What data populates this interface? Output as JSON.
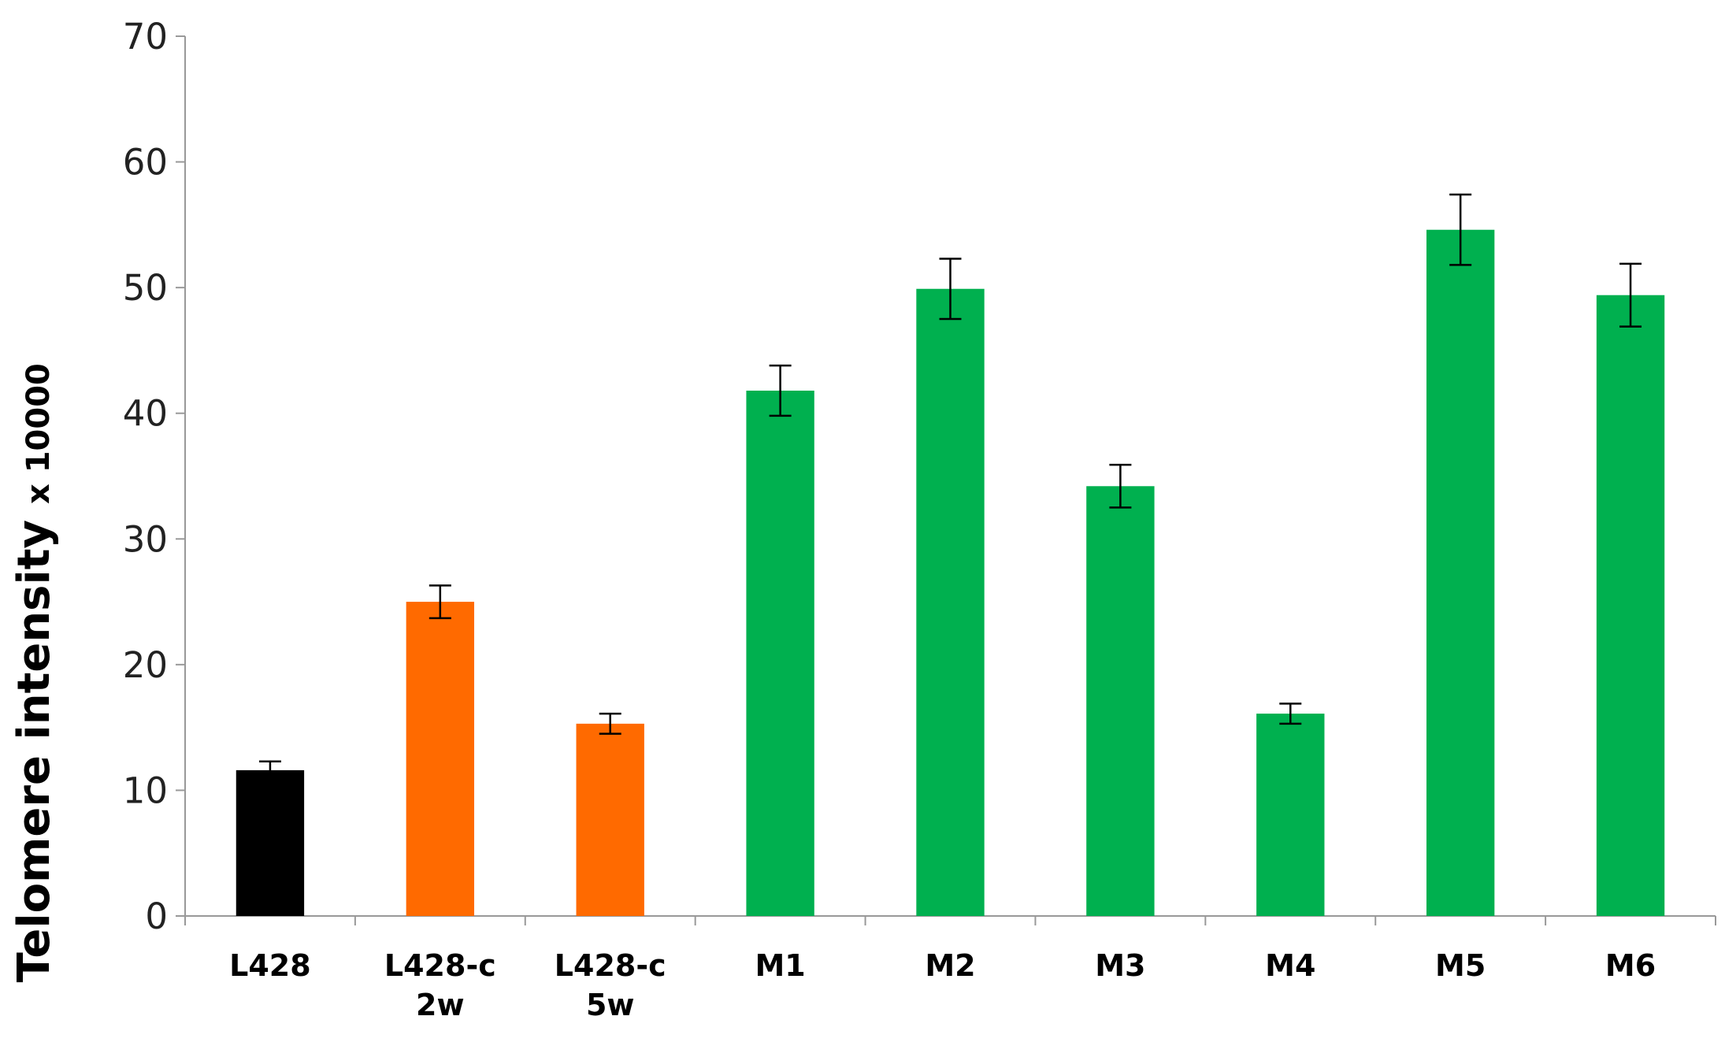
{
  "chart_data": {
    "type": "bar",
    "y_label": "Telomere intensity",
    "y_label_suffix": "x 10000",
    "categories": [
      "L428",
      "L428-c\n2w",
      "L428-c\n5w",
      "M1",
      "M2",
      "M3",
      "M4",
      "M5",
      "M6"
    ],
    "values": [
      11.6,
      25.0,
      15.3,
      41.8,
      49.9,
      34.2,
      16.1,
      54.6,
      49.4
    ],
    "errors": [
      0.7,
      1.3,
      0.8,
      2.0,
      2.4,
      1.7,
      0.8,
      2.8,
      2.5
    ],
    "colors": [
      "#000000",
      "#ff6a00",
      "#ff6a00",
      "#00b04f",
      "#00b04f",
      "#00b04f",
      "#00b04f",
      "#00b04f",
      "#00b04f"
    ],
    "ylim": [
      0,
      70
    ],
    "yticks": [
      0,
      10,
      20,
      30,
      40,
      50,
      60,
      70
    ],
    "grid": false
  }
}
